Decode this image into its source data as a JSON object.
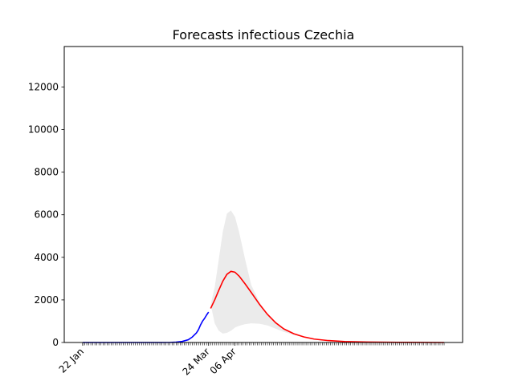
{
  "chart_data": {
    "type": "line",
    "title": "Forecasts infectious Czechia",
    "xlabel": "",
    "ylabel": "",
    "x_start": "2020-01-22",
    "x_end": "2020-07-18",
    "x_tick_labels": [
      {
        "date": "2020-01-22",
        "label": "22 Jan"
      },
      {
        "date": "2020-03-24",
        "label": "24 Mar"
      },
      {
        "date": "2020-04-06",
        "label": "06 Apr"
      }
    ],
    "ylim": [
      0,
      13900
    ],
    "yticks": [
      0,
      2000,
      4000,
      6000,
      8000,
      10000,
      12000
    ],
    "grid": false,
    "legend": "none",
    "series": [
      {
        "role": "observed",
        "color": "#0000ff",
        "points": [
          [
            "2020-01-22",
            0
          ],
          [
            "2020-02-14",
            0
          ],
          [
            "2020-03-01",
            0
          ],
          [
            "2020-03-05",
            5
          ],
          [
            "2020-03-08",
            15
          ],
          [
            "2020-03-11",
            50
          ],
          [
            "2020-03-14",
            130
          ],
          [
            "2020-03-16",
            260
          ],
          [
            "2020-03-18",
            450
          ],
          [
            "2020-03-19",
            600
          ],
          [
            "2020-03-20",
            820
          ],
          [
            "2020-03-21",
            1000
          ],
          [
            "2020-03-22",
            1130
          ],
          [
            "2020-03-23",
            1290
          ],
          [
            "2020-03-24",
            1430
          ]
        ]
      },
      {
        "role": "forecast",
        "color": "#ff0000",
        "points": [
          [
            "2020-03-25",
            1600
          ],
          [
            "2020-03-27",
            2000
          ],
          [
            "2020-03-29",
            2450
          ],
          [
            "2020-03-31",
            2880
          ],
          [
            "2020-04-02",
            3200
          ],
          [
            "2020-04-04",
            3340
          ],
          [
            "2020-04-06",
            3300
          ],
          [
            "2020-04-08",
            3120
          ],
          [
            "2020-04-11",
            2750
          ],
          [
            "2020-04-14",
            2350
          ],
          [
            "2020-04-18",
            1800
          ],
          [
            "2020-04-22",
            1320
          ],
          [
            "2020-04-26",
            930
          ],
          [
            "2020-04-30",
            640
          ],
          [
            "2020-05-05",
            410
          ],
          [
            "2020-05-10",
            260
          ],
          [
            "2020-05-15",
            160
          ],
          [
            "2020-05-22",
            90
          ],
          [
            "2020-05-30",
            45
          ],
          [
            "2020-06-10",
            20
          ],
          [
            "2020-06-25",
            8
          ],
          [
            "2020-07-18",
            0
          ]
        ]
      }
    ],
    "band": {
      "color": "#ebebeb",
      "points": [
        [
          "2020-03-25",
          1750,
          1800
        ],
        [
          "2020-03-27",
          2600,
          900
        ],
        [
          "2020-03-29",
          3900,
          550
        ],
        [
          "2020-03-31",
          5200,
          420
        ],
        [
          "2020-04-02",
          6050,
          450
        ],
        [
          "2020-04-04",
          6200,
          550
        ],
        [
          "2020-04-06",
          5900,
          700
        ],
        [
          "2020-04-08",
          5200,
          780
        ],
        [
          "2020-04-11",
          3900,
          860
        ],
        [
          "2020-04-14",
          2700,
          900
        ],
        [
          "2020-04-18",
          1900,
          880
        ],
        [
          "2020-04-22",
          1300,
          800
        ],
        [
          "2020-04-26",
          930,
          650
        ],
        [
          "2020-04-30",
          640,
          500
        ],
        [
          "2020-05-05",
          410,
          360
        ],
        [
          "2020-05-10",
          260,
          240
        ],
        [
          "2020-05-15",
          160,
          150
        ],
        [
          "2020-05-22",
          90,
          85
        ],
        [
          "2020-05-30",
          45,
          40
        ],
        [
          "2020-06-10",
          20,
          18
        ],
        [
          "2020-06-25",
          8,
          7
        ],
        [
          "2020-07-18",
          0,
          0
        ]
      ]
    }
  }
}
